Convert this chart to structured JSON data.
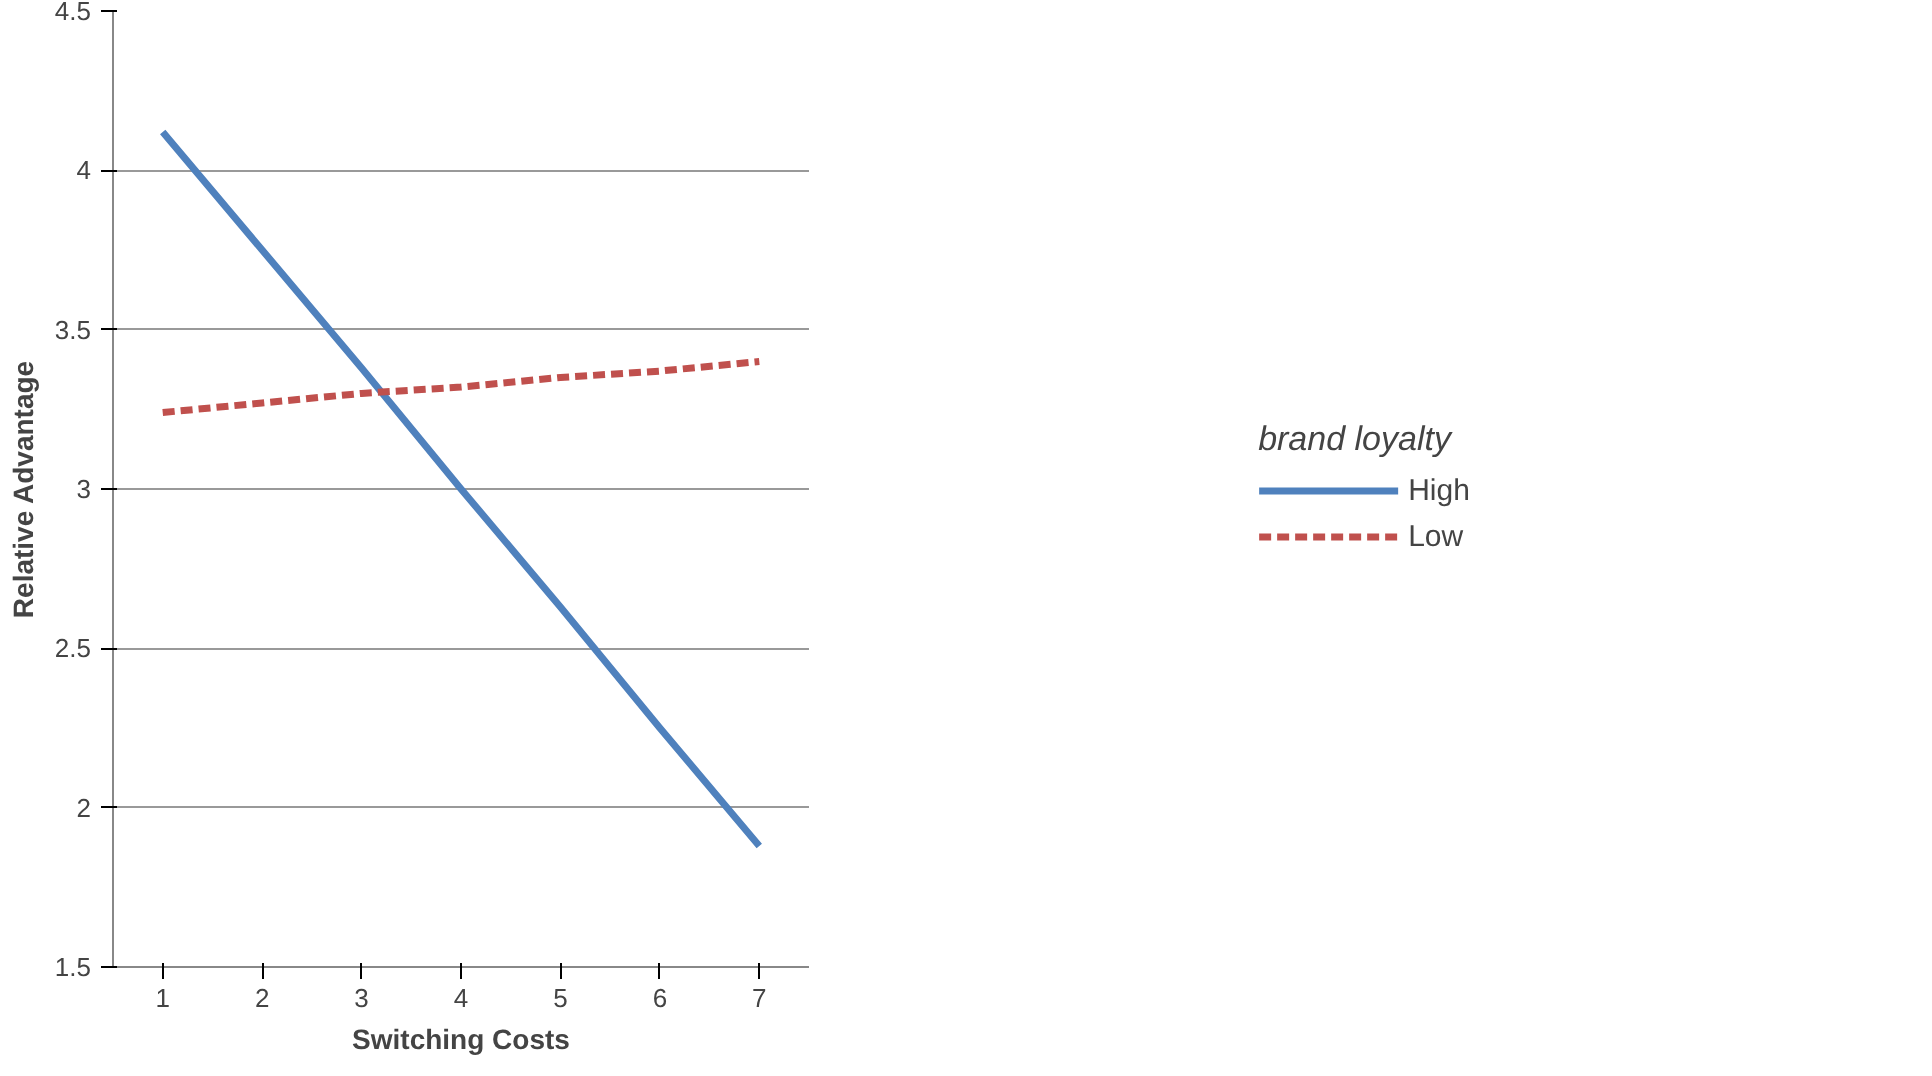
{
  "chart_data": {
    "type": "line",
    "xlabel": "Switching Costs",
    "ylabel": "Relative Advantage",
    "legend_title": "brand loyalty",
    "categories": [
      "1",
      "2",
      "3",
      "4",
      "5",
      "6",
      "7"
    ],
    "series": [
      {
        "name": "High",
        "color": "#4f81bd",
        "line_style": "solid",
        "values": [
          4.12,
          3.75,
          3.38,
          3.0,
          2.63,
          2.25,
          1.88
        ]
      },
      {
        "name": "Low",
        "color": "#c0504d",
        "line_style": "dashed",
        "values": [
          3.24,
          3.27,
          3.3,
          3.32,
          3.35,
          3.37,
          3.4
        ]
      }
    ],
    "ylim": [
      1.5,
      4.5
    ],
    "yticks": [
      1.5,
      2,
      2.5,
      3,
      3.5,
      4,
      4.5
    ],
    "grid": "y",
    "legend": "right",
    "marker": "none"
  }
}
